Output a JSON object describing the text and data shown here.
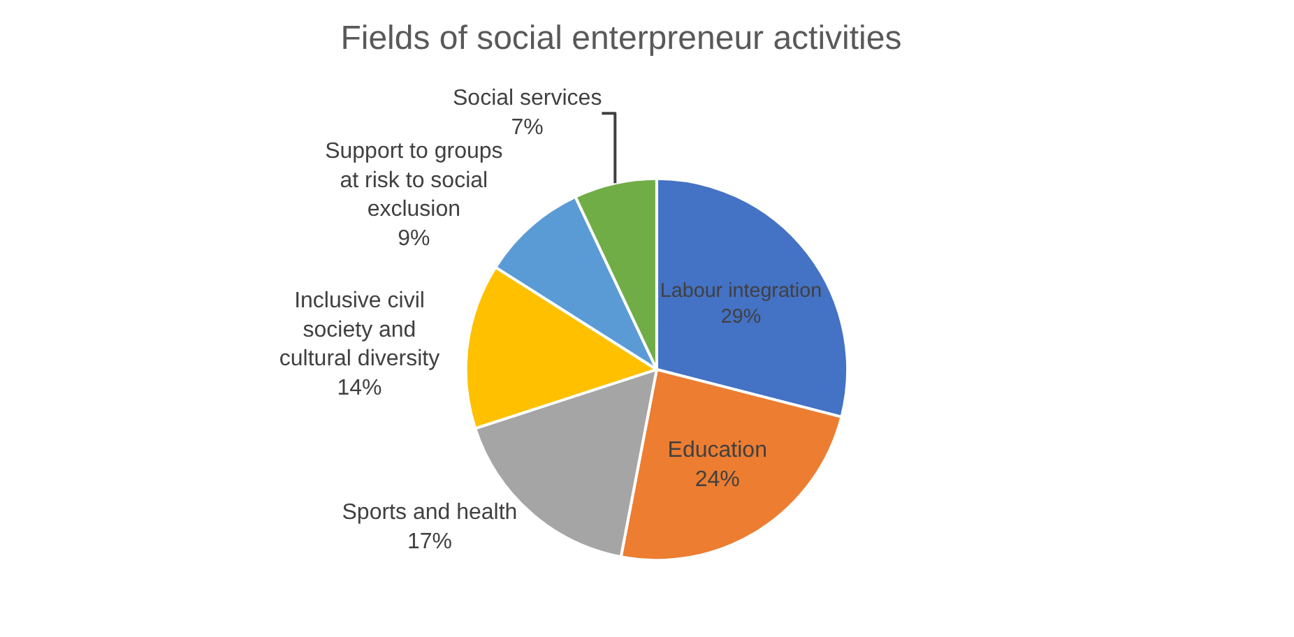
{
  "chart_data": {
    "type": "pie",
    "title": "Fields of social enterpreneur activities",
    "categories": [
      "Labour integration",
      "Education",
      "Sports and health",
      "Inclusive civil society and cultural diversity",
      "Support to groups at risk to social exclusion",
      "Social services"
    ],
    "values": [
      29,
      24,
      17,
      14,
      9,
      7
    ],
    "value_labels": [
      "29%",
      "24%",
      "17%",
      "14%",
      "9%",
      "7%"
    ],
    "colors": [
      "#4472c4",
      "#ed7d31",
      "#a5a5a5",
      "#ffc000",
      "#5b9bd5",
      "#70ad47"
    ],
    "legend": false
  }
}
